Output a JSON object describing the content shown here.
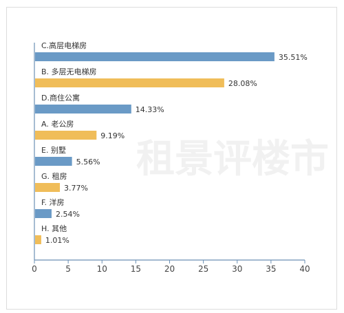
{
  "watermark": "租景评楼市",
  "chart_data": {
    "type": "bar",
    "orientation": "horizontal",
    "categories": [
      "C.高层电梯房",
      "B. 多层无电梯房",
      "D.商住公寓",
      "A. 老公房",
      "E. 别墅",
      "G. 租房",
      "F. 洋房",
      "H. 其他"
    ],
    "values": [
      35.51,
      28.08,
      14.33,
      9.19,
      5.56,
      3.77,
      2.54,
      1.01
    ],
    "value_labels": [
      "35.51%",
      "28.08%",
      "14.33%",
      "9.19%",
      "5.56%",
      "3.77%",
      "2.54%",
      "1.01%"
    ],
    "bar_colors": [
      "#6a9ac6",
      "#f0bd59",
      "#6a9ac6",
      "#f0bd59",
      "#6a9ac6",
      "#f0bd59",
      "#6a9ac6",
      "#f0bd59"
    ],
    "xlim": [
      0,
      40
    ],
    "xticks": [
      0,
      5,
      10,
      15,
      20,
      25,
      30,
      35,
      40
    ],
    "xtick_labels": [
      "0",
      "5",
      "10",
      "15",
      "20",
      "25",
      "30",
      "35",
      "40"
    ],
    "axis_color": "#6a8fb3",
    "grid": false
  }
}
